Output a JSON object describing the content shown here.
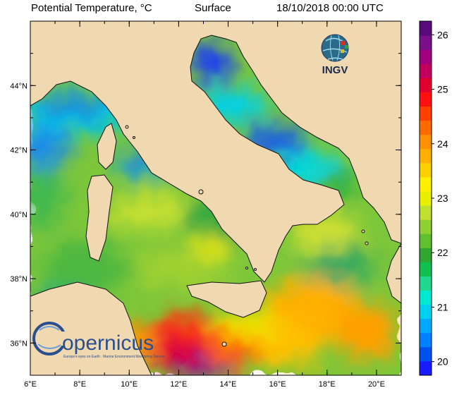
{
  "header": {
    "title": "Potential Temperature, °C",
    "level": "Surface",
    "datetime": "18/10/2018 00:00 UTC"
  },
  "axes": {
    "lon_range": [
      6,
      21
    ],
    "lat_range": [
      35,
      46
    ],
    "lon_ticks": [
      {
        "value": 6,
        "label": "6°E"
      },
      {
        "value": 8,
        "label": "8°E"
      },
      {
        "value": 10,
        "label": "10°E"
      },
      {
        "value": 12,
        "label": "12°E"
      },
      {
        "value": 14,
        "label": "14°E"
      },
      {
        "value": 16,
        "label": "16°E"
      },
      {
        "value": 18,
        "label": "18°E"
      },
      {
        "value": 20,
        "label": "20°E"
      }
    ],
    "lat_ticks": [
      {
        "value": 36,
        "label": "36°N"
      },
      {
        "value": 38,
        "label": "38°N"
      },
      {
        "value": 40,
        "label": "40°N"
      },
      {
        "value": 42,
        "label": "42°N"
      },
      {
        "value": 44,
        "label": "44°N"
      }
    ]
  },
  "colorbar": {
    "min": 19.75,
    "max": 26.25,
    "labels": [
      "20",
      "21",
      "22",
      "23",
      "24",
      "25",
      "26"
    ],
    "colors": [
      "#1a1aff",
      "#0050f0",
      "#0080ff",
      "#00a8ff",
      "#00d0f0",
      "#00e8d0",
      "#20d890",
      "#10c050",
      "#30a830",
      "#60c030",
      "#90d030",
      "#c0e030",
      "#e8f000",
      "#fff000",
      "#ffd000",
      "#ffb000",
      "#ff9000",
      "#ff6a00",
      "#ff4000",
      "#ff1010",
      "#e00030",
      "#c0005c",
      "#a00080",
      "#7a108a",
      "#580a7a"
    ]
  },
  "colors": {
    "land": "#f0d9b0",
    "coast": "#111111"
  },
  "logos": {
    "ingv_text": "INGV",
    "copernicus_text": "opernicus",
    "copernicus_tagline": "Europe's eyes on Earth · Marine Environment Monitoring Service"
  }
}
